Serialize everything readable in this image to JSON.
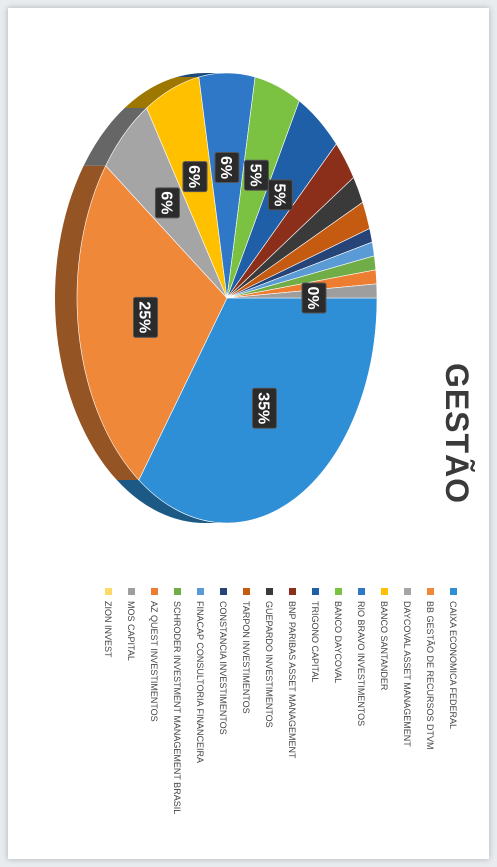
{
  "chart_data": {
    "type": "pie",
    "title": "GESTÃO",
    "legend_position": "right",
    "categories": [
      "CAIXA ECONOMICA FEDERAL",
      "BB GESTÃO DE RECURSOS DTVM",
      "DAYCOVAL ASSET MANAGEMENT",
      "BANCO SANTANDER",
      "RIO BRAVO INVESTIMENTOS",
      "BANCO DAYCOVAL",
      "TRIGONO CAPITAL",
      "BNP PARIBAS ASSET MANAGEMENT",
      "GUEPARDO INVESTIMENTOS",
      "TARPON INVESTIMENTOS",
      "CONSTANCIA INVESTIMENTOS",
      "FINACAP CONSULTORIA FINANCEIRA",
      "SCHRODER INVESTMENT MANAGEMENT BRASIL",
      "AZ QUEST INVESTIMENTOS",
      "MOS CAPITAL",
      "ZION INVEST"
    ],
    "values": [
      35,
      25,
      6,
      6,
      6,
      5,
      5,
      3,
      2,
      2,
      1,
      1,
      1,
      1,
      1,
      0
    ],
    "data_labels": [
      "35%",
      "25%",
      "6%",
      "6%",
      "6%",
      "5%",
      "5%",
      "",
      "",
      "",
      "",
      "",
      "",
      "",
      "",
      "0%"
    ],
    "colors": [
      "#2f8fd6",
      "#f0883a",
      "#a5a5a5",
      "#ffc000",
      "#2f78c8",
      "#7cc242",
      "#1f5fa8",
      "#8b2f1a",
      "#3a3a3a",
      "#c55a11",
      "#264478",
      "#5b9bd5",
      "#70ad47",
      "#ed7d31",
      "#9e9e9e",
      "#ffd966"
    ]
  }
}
